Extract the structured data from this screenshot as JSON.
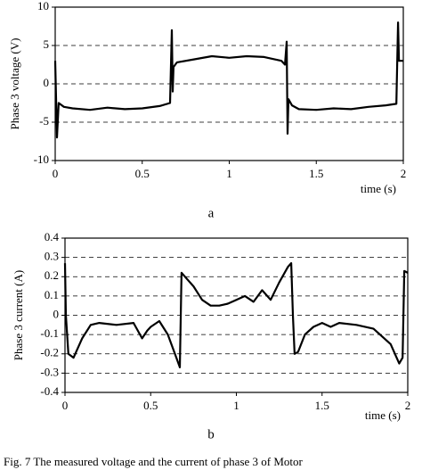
{
  "chart_data": [
    {
      "type": "line",
      "subtitle": "a",
      "y_label": "Phase 3 voltage (V)",
      "x_label": "time (s)",
      "xlim": [
        0,
        2
      ],
      "xticks": [
        0,
        0.5,
        1,
        1.5,
        2
      ],
      "ylim": [
        -10,
        10
      ],
      "yticks": [
        -10,
        -5,
        0,
        5,
        10
      ],
      "grid": true,
      "series": [
        {
          "color": "#000000",
          "x": [
            0,
            0.01,
            0.02,
            0.05,
            0.1,
            0.2,
            0.3,
            0.4,
            0.5,
            0.6,
            0.66,
            0.67,
            0.675,
            0.68,
            0.7,
            0.8,
            0.9,
            1.0,
            1.1,
            1.2,
            1.3,
            1.32,
            1.33,
            1.335,
            1.34,
            1.36,
            1.4,
            1.5,
            1.6,
            1.7,
            1.8,
            1.9,
            1.96,
            1.97,
            1.975,
            1.98,
            2.0
          ],
          "values": [
            3,
            -7,
            -2.5,
            -3,
            -3.2,
            -3.4,
            -3.1,
            -3.3,
            -3.2,
            -2.9,
            -2.5,
            7,
            -1,
            2.2,
            2.8,
            3.2,
            3.6,
            3.4,
            3.6,
            3.5,
            3.0,
            2.5,
            5.5,
            -6.5,
            -2,
            -2.8,
            -3.3,
            -3.4,
            -3.2,
            -3.3,
            -3.0,
            -2.8,
            -2.6,
            8,
            3,
            3,
            3
          ]
        }
      ]
    },
    {
      "type": "line",
      "subtitle": "b",
      "y_label": "Phase 3 current (A)",
      "x_label": "time (s)",
      "xlim": [
        0,
        2
      ],
      "xticks": [
        0,
        0.5,
        1,
        1.5,
        2
      ],
      "ylim": [
        -0.4,
        0.4
      ],
      "yticks": [
        -0.4,
        -0.3,
        -0.2,
        -0.1,
        0,
        0.1,
        0.2,
        0.3,
        0.4
      ],
      "grid": true,
      "series": [
        {
          "color": "#000000",
          "x": [
            0,
            0.005,
            0.02,
            0.05,
            0.1,
            0.15,
            0.2,
            0.3,
            0.4,
            0.45,
            0.48,
            0.5,
            0.55,
            0.6,
            0.65,
            0.67,
            0.68,
            0.7,
            0.75,
            0.8,
            0.85,
            0.9,
            0.95,
            1.0,
            1.05,
            1.1,
            1.15,
            1.2,
            1.25,
            1.3,
            1.32,
            1.33,
            1.34,
            1.36,
            1.4,
            1.45,
            1.5,
            1.55,
            1.6,
            1.7,
            1.8,
            1.9,
            1.95,
            1.97,
            1.98,
            2.0
          ],
          "values": [
            0.27,
            0,
            -0.2,
            -0.22,
            -0.12,
            -0.05,
            -0.04,
            -0.05,
            -0.04,
            -0.12,
            -0.08,
            -0.06,
            -0.03,
            -0.1,
            -0.22,
            -0.27,
            0.22,
            0.2,
            0.15,
            0.08,
            0.05,
            0.05,
            0.06,
            0.08,
            0.1,
            0.07,
            0.13,
            0.08,
            0.17,
            0.25,
            0.27,
            0.0,
            -0.2,
            -0.19,
            -0.1,
            -0.06,
            -0.04,
            -0.06,
            -0.04,
            -0.05,
            -0.07,
            -0.15,
            -0.25,
            -0.22,
            0.23,
            0.22
          ]
        }
      ]
    }
  ],
  "caption": "Fig. 7 The measured voltage and the current of phase 3 of Motor"
}
